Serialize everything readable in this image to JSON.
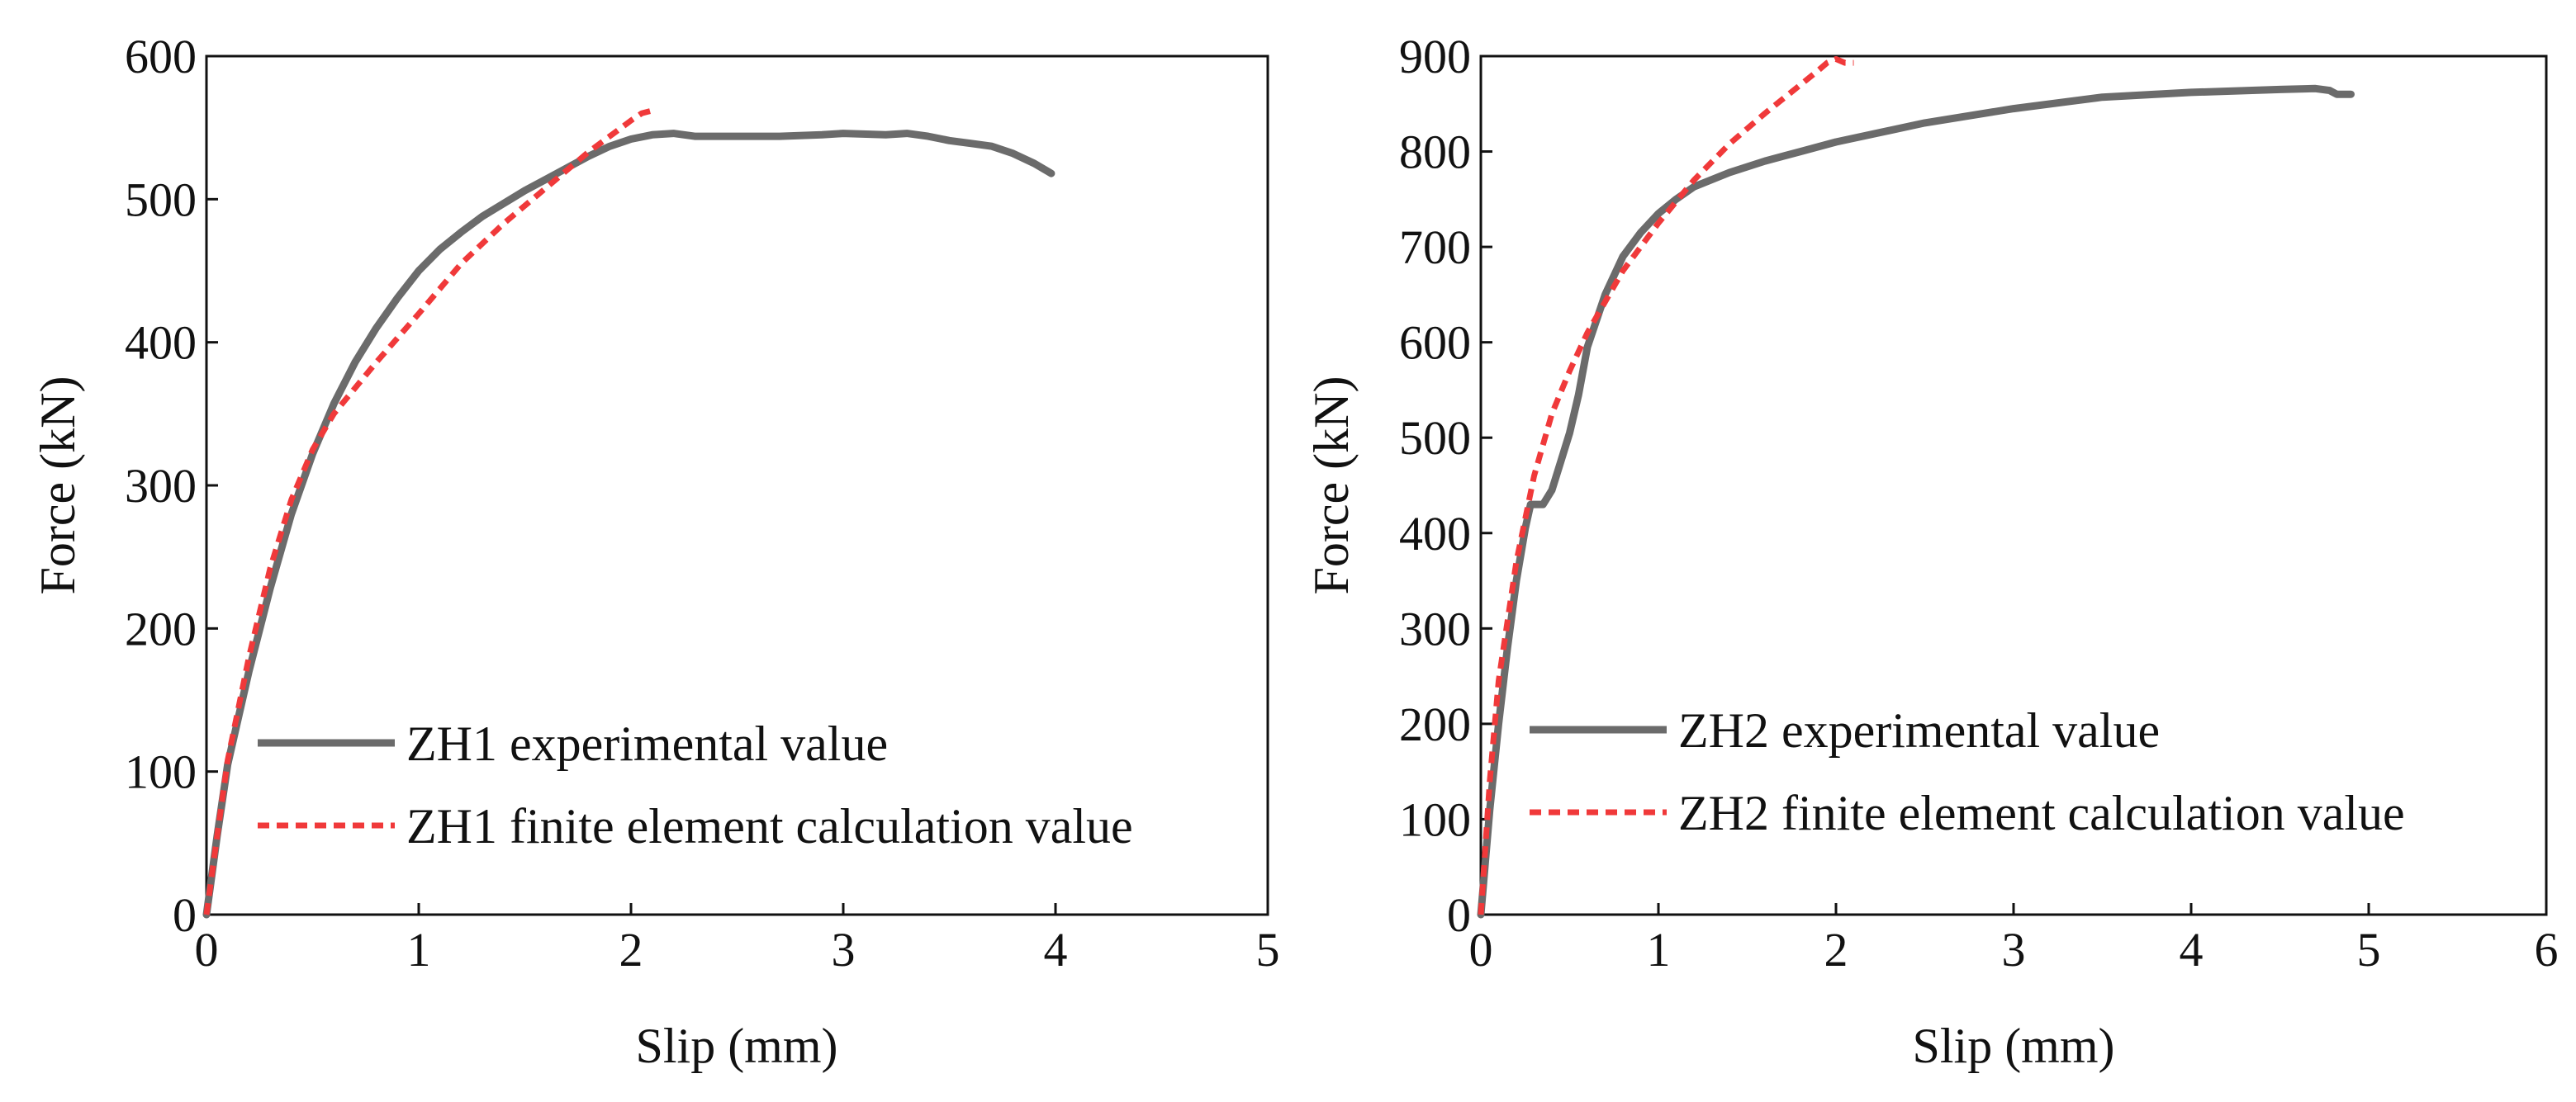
{
  "chart_data": [
    {
      "type": "line",
      "xlabel": "Slip (mm)",
      "ylabel": "Force (kN)",
      "xlim": [
        0,
        5
      ],
      "ylim": [
        0,
        600
      ],
      "xticks": [
        0,
        1,
        2,
        3,
        4,
        5
      ],
      "yticks": [
        0,
        100,
        200,
        300,
        400,
        500,
        600
      ],
      "legend_position": "bottom-right",
      "series": [
        {
          "name": "ZH1 experimental value",
          "color": "#6b6b6b",
          "style": "solid",
          "x": [
            0,
            0.05,
            0.1,
            0.2,
            0.3,
            0.4,
            0.5,
            0.6,
            0.7,
            0.8,
            0.9,
            1.0,
            1.1,
            1.2,
            1.3,
            1.4,
            1.5,
            1.6,
            1.7,
            1.8,
            1.9,
            2.0,
            2.1,
            2.2,
            2.3,
            2.5,
            2.7,
            2.9,
            3.0,
            3.2,
            3.3,
            3.4,
            3.5,
            3.6,
            3.7,
            3.8,
            3.9,
            3.98
          ],
          "y": [
            0,
            55,
            105,
            170,
            228,
            280,
            322,
            357,
            386,
            410,
            431,
            450,
            465,
            477,
            488,
            497,
            506,
            514,
            522,
            530,
            537,
            542,
            545,
            546,
            544,
            544,
            544,
            545,
            546,
            545,
            546,
            544,
            541,
            539,
            537,
            532,
            525,
            518
          ]
        },
        {
          "name": "ZH1 finite element calculation value",
          "color": "#f0393a",
          "style": "dashed",
          "x": [
            0,
            0.05,
            0.1,
            0.2,
            0.3,
            0.4,
            0.5,
            0.6,
            0.8,
            1.0,
            1.2,
            1.4,
            1.6,
            1.8,
            1.9,
            2.0,
            2.05,
            2.1
          ],
          "y": [
            0,
            55,
            108,
            180,
            242,
            290,
            325,
            350,
            386,
            420,
            455,
            483,
            508,
            533,
            544,
            555,
            560,
            562
          ]
        }
      ]
    },
    {
      "type": "line",
      "xlabel": "Slip (mm)",
      "ylabel": "Force (kN)",
      "xlim": [
        0,
        6
      ],
      "ylim": [
        0,
        900
      ],
      "xticks": [
        0,
        1,
        2,
        3,
        4,
        5,
        6
      ],
      "yticks": [
        0,
        100,
        200,
        300,
        400,
        500,
        600,
        700,
        800,
        900
      ],
      "legend_position": "bottom-right",
      "series": [
        {
          "name": "ZH2 experimental value",
          "color": "#6b6b6b",
          "style": "solid",
          "x": [
            0,
            0.05,
            0.1,
            0.15,
            0.2,
            0.25,
            0.28,
            0.3,
            0.35,
            0.4,
            0.45,
            0.5,
            0.55,
            0.6,
            0.7,
            0.8,
            0.9,
            1.0,
            1.1,
            1.2,
            1.4,
            1.6,
            1.8,
            2.0,
            2.5,
            3.0,
            3.5,
            4.0,
            4.5,
            4.7,
            4.78,
            4.82,
            4.9
          ],
          "y": [
            0,
            110,
            200,
            280,
            350,
            405,
            430,
            430,
            430,
            445,
            475,
            505,
            545,
            595,
            650,
            690,
            715,
            735,
            750,
            763,
            778,
            790,
            800,
            810,
            830,
            845,
            857,
            862,
            865,
            866,
            864,
            860,
            860
          ]
        },
        {
          "name": "ZH2 finite element calculation value",
          "color": "#f0393a",
          "style": "dashed",
          "x": [
            0,
            0.05,
            0.1,
            0.2,
            0.3,
            0.4,
            0.5,
            0.6,
            0.8,
            1.0,
            1.2,
            1.4,
            1.6,
            1.8,
            1.9,
            1.95,
            2.0,
            2.05,
            2.1
          ],
          "y": [
            0,
            140,
            245,
            370,
            460,
            525,
            570,
            610,
            675,
            725,
            770,
            808,
            840,
            870,
            885,
            893,
            897,
            893,
            893
          ]
        }
      ]
    }
  ]
}
